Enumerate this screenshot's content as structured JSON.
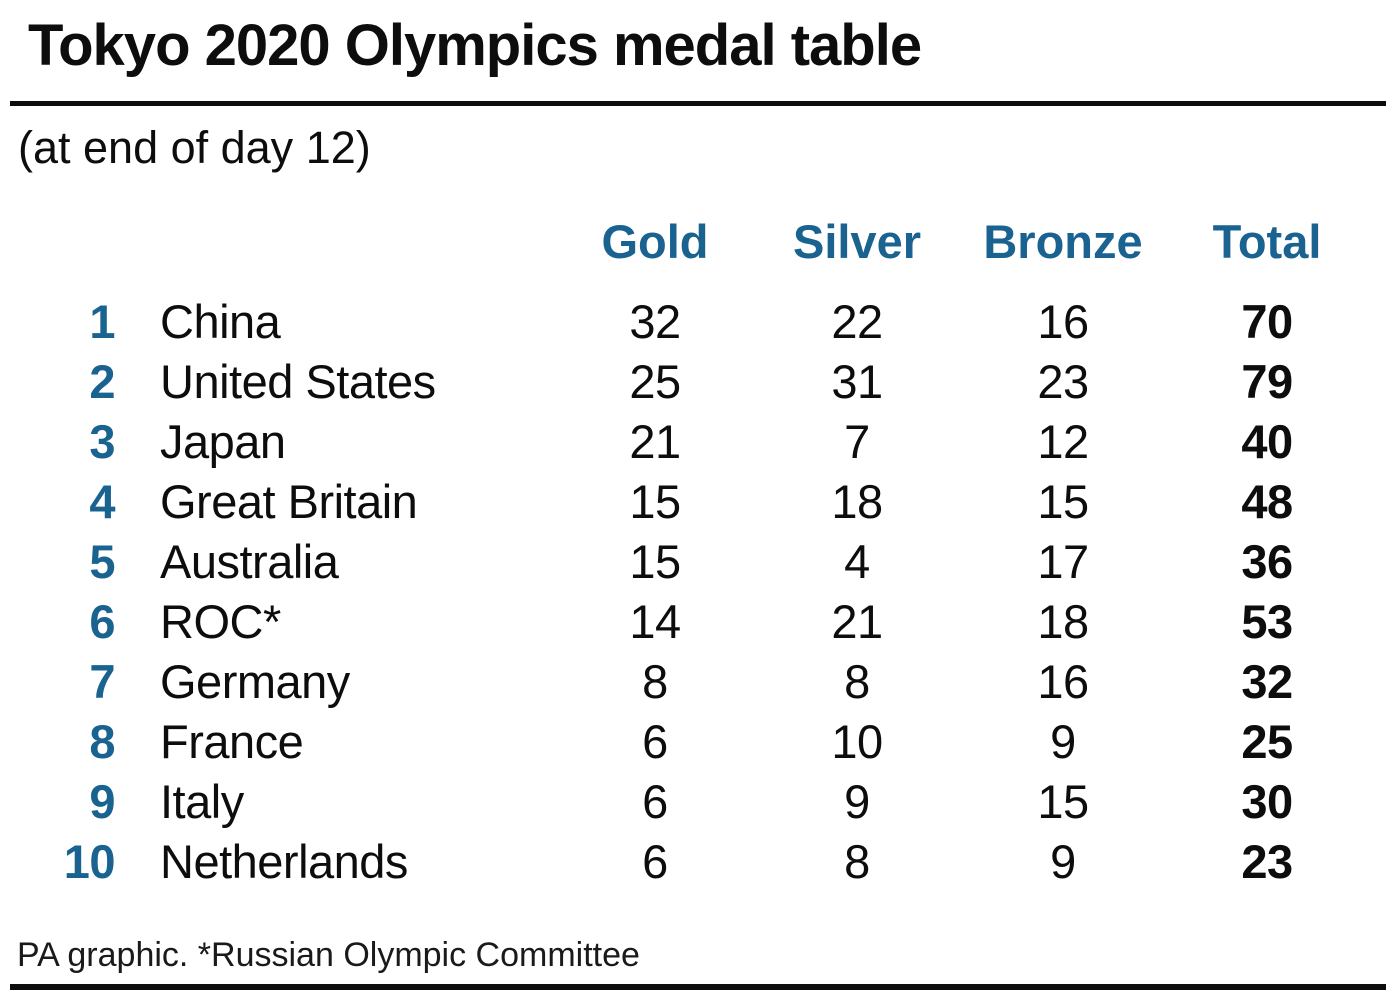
{
  "title": "Tokyo 2020 Olympics medal table",
  "subtitle": "(at end of day 12)",
  "footer": "PA graphic. *Russian Olympic Committee",
  "colors": {
    "accent_blue": "#1a6390",
    "text_black": "#0d0d0d",
    "background": "#ffffff"
  },
  "chart_data": {
    "type": "table",
    "title": "Tokyo 2020 Olympics medal table",
    "subtitle": "(at end of day 12)",
    "columns": [
      "Gold",
      "Silver",
      "Bronze",
      "Total"
    ],
    "rows": [
      {
        "rank": "1",
        "country": "China",
        "gold": 32,
        "silver": 22,
        "bronze": 16,
        "total": 70
      },
      {
        "rank": "2",
        "country": "United States",
        "gold": 25,
        "silver": 31,
        "bronze": 23,
        "total": 79
      },
      {
        "rank": "3",
        "country": "Japan",
        "gold": 21,
        "silver": 7,
        "bronze": 12,
        "total": 40
      },
      {
        "rank": "4",
        "country": "Great Britain",
        "gold": 15,
        "silver": 18,
        "bronze": 15,
        "total": 48
      },
      {
        "rank": "5",
        "country": "Australia",
        "gold": 15,
        "silver": 4,
        "bronze": 17,
        "total": 36
      },
      {
        "rank": "6",
        "country": "ROC*",
        "gold": 14,
        "silver": 21,
        "bronze": 18,
        "total": 53
      },
      {
        "rank": "7",
        "country": "Germany",
        "gold": 8,
        "silver": 8,
        "bronze": 16,
        "total": 32
      },
      {
        "rank": "8",
        "country": "France",
        "gold": 6,
        "silver": 10,
        "bronze": 9,
        "total": 25
      },
      {
        "rank": "9",
        "country": "Italy",
        "gold": 6,
        "silver": 9,
        "bronze": 15,
        "total": 30
      },
      {
        "rank": "10",
        "country": "Netherlands",
        "gold": 6,
        "silver": 8,
        "bronze": 9,
        "total": 23
      }
    ],
    "source_note": "PA graphic. *Russian Olympic Committee"
  }
}
